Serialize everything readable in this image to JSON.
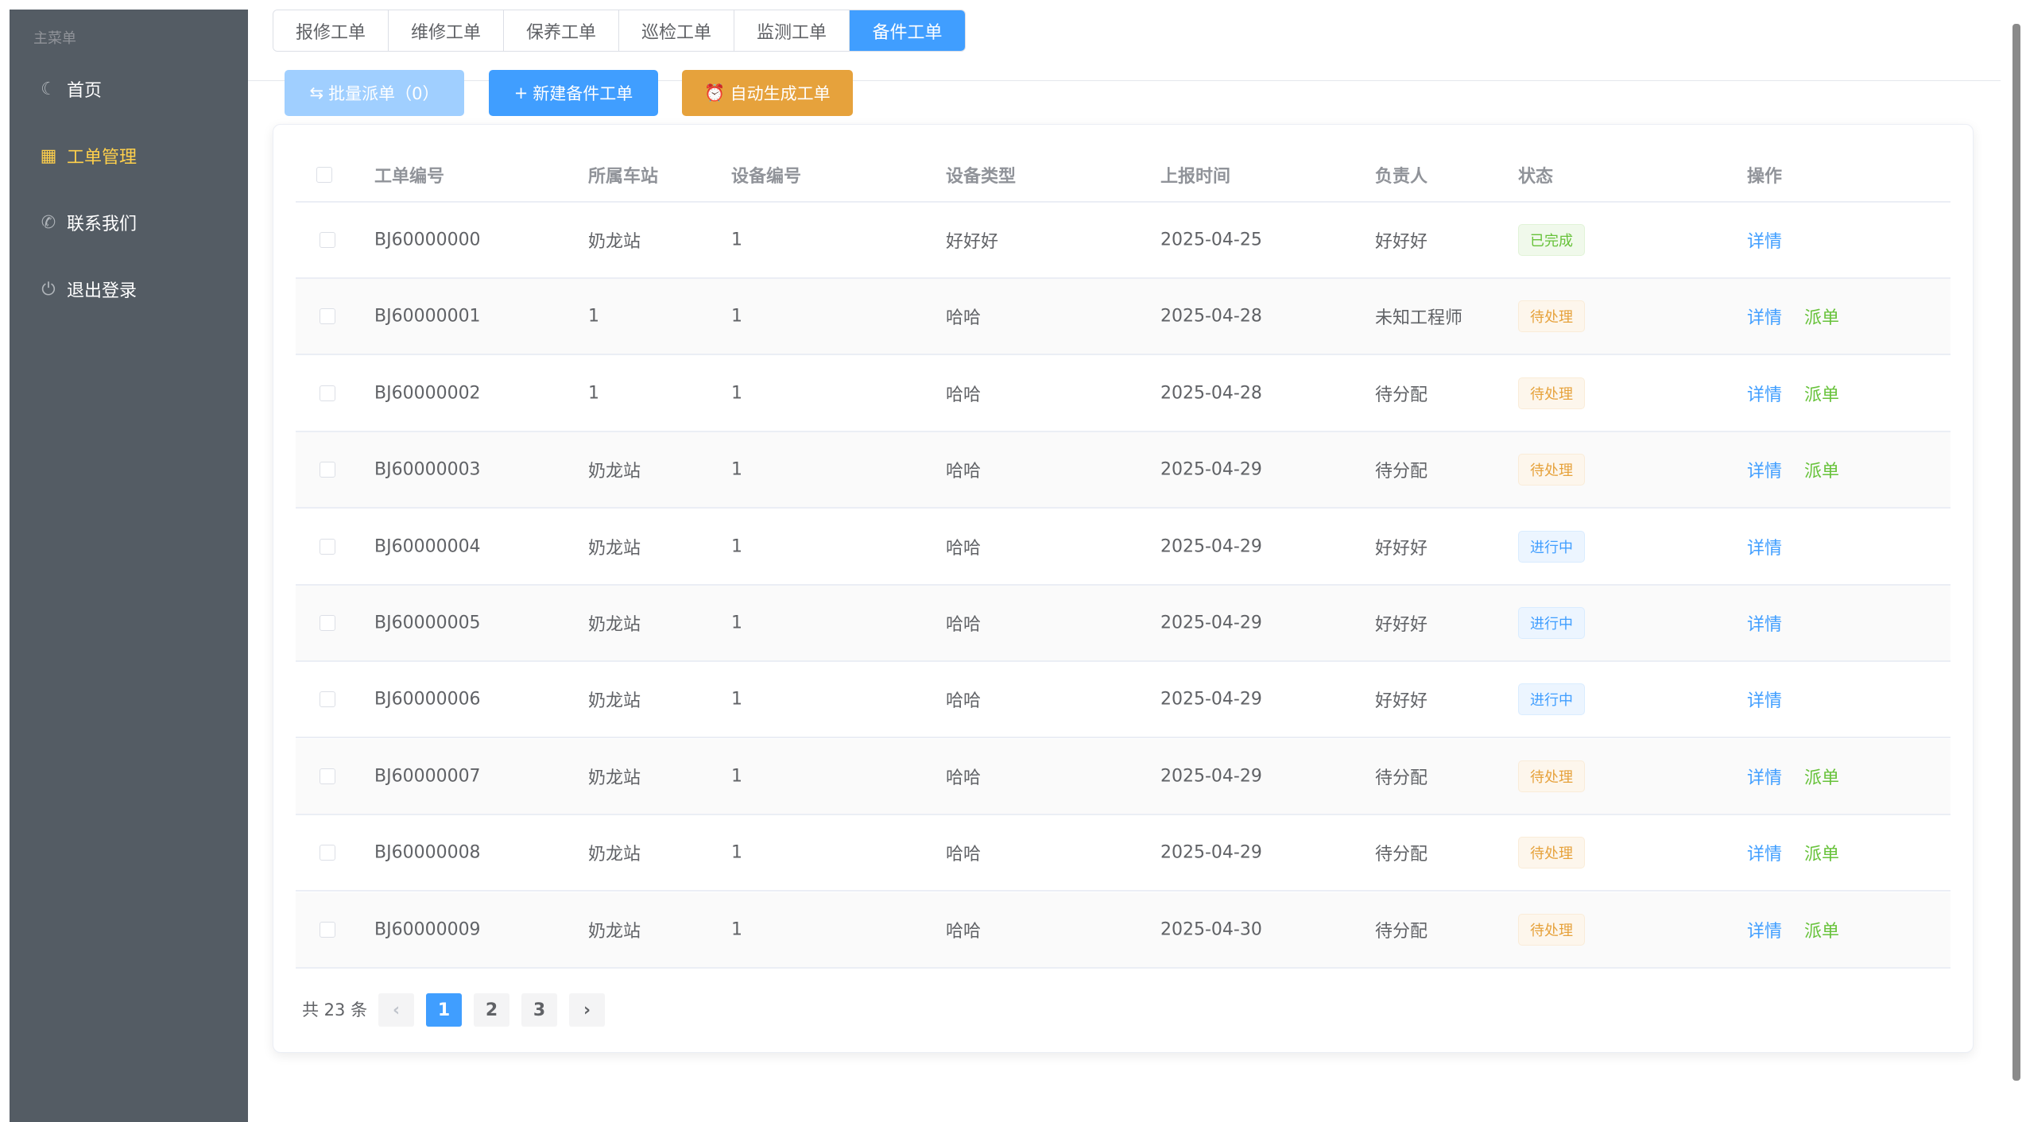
{
  "sidebar": {
    "title": "主菜单",
    "items": [
      {
        "label": "首页",
        "icon": "moon-icon"
      },
      {
        "label": "工单管理",
        "icon": "grid-icon",
        "active": true
      },
      {
        "label": "联系我们",
        "icon": "phone-icon"
      },
      {
        "label": "退出登录",
        "icon": "power-icon"
      }
    ]
  },
  "tabs": [
    "报修工单",
    "维修工单",
    "保养工单",
    "巡检工单",
    "监测工单",
    "备件工单"
  ],
  "active_tab": "备件工单",
  "toolbar": {
    "batch": "批量派单（0）",
    "new": "新建备件工单",
    "auto": "自动生成工单"
  },
  "colors": {
    "primary": "#409eff",
    "warning": "#e6a23c",
    "success": "#67c23a",
    "sidebar": "#545c64",
    "active_menu": "#ffd04b"
  },
  "table": {
    "headers": [
      "工单编号",
      "所属车站",
      "设备编号",
      "设备类型",
      "上报时间",
      "负责人",
      "状态",
      "操作"
    ],
    "rows": [
      [
        "BJ60000000",
        "奶龙站",
        "1",
        "好好好",
        "2025-04-25",
        "好好好",
        "已完成"
      ],
      [
        "BJ60000001",
        "1",
        "1",
        "哈哈",
        "2025-04-28",
        "未知工程师",
        "待处理"
      ],
      [
        "BJ60000002",
        "1",
        "1",
        "哈哈",
        "2025-04-28",
        "待分配",
        "待处理"
      ],
      [
        "BJ60000003",
        "奶龙站",
        "1",
        "哈哈",
        "2025-04-29",
        "待分配",
        "待处理"
      ],
      [
        "BJ60000004",
        "奶龙站",
        "1",
        "哈哈",
        "2025-04-29",
        "好好好",
        "进行中"
      ],
      [
        "BJ60000005",
        "奶龙站",
        "1",
        "哈哈",
        "2025-04-29",
        "好好好",
        "进行中"
      ],
      [
        "BJ60000006",
        "奶龙站",
        "1",
        "哈哈",
        "2025-04-29",
        "好好好",
        "进行中"
      ],
      [
        "BJ60000007",
        "奶龙站",
        "1",
        "哈哈",
        "2025-04-29",
        "待分配",
        "待处理"
      ],
      [
        "BJ60000008",
        "奶龙站",
        "1",
        "哈哈",
        "2025-04-29",
        "待分配",
        "待处理"
      ],
      [
        "BJ60000009",
        "奶龙站",
        "1",
        "哈哈",
        "2025-04-30",
        "待分配",
        "待处理"
      ]
    ],
    "detail": "详情",
    "dispatch": "派单"
  },
  "pagination": {
    "total": "共 23 条",
    "pages": [
      "1",
      "2",
      "3"
    ],
    "current": "1"
  }
}
